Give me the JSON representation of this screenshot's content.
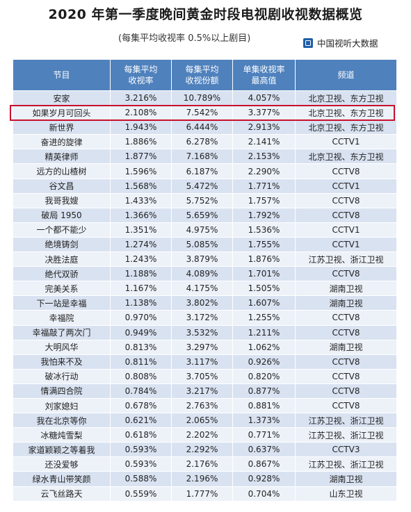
{
  "title": "2020 年第一季度晚间黄金时段电视剧收视数据概览",
  "subtitle": "(每集平均收视率 0.5%以上剧目)",
  "brand": {
    "icon": "tv-icon",
    "name": "中国视听大数据",
    "color": "#1f5fa8"
  },
  "table": {
    "header_color": "#4f81bd",
    "highlight_color": "#c8102e",
    "columns": [
      {
        "line1": "节目",
        "line2": ""
      },
      {
        "line1": "每集平均",
        "line2": "收视率"
      },
      {
        "line1": "每集平均",
        "line2": "收视份额"
      },
      {
        "line1": "单集收视率",
        "line2": "最高值"
      },
      {
        "line1": "频道",
        "line2": ""
      }
    ],
    "rows": [
      [
        "安家",
        "3.216%",
        "10.789%",
        "4.057%",
        "北京卫视、东方卫视"
      ],
      [
        "如果岁月可回头",
        "2.108%",
        "7.542%",
        "3.377%",
        "北京卫视、东方卫视"
      ],
      [
        "新世界",
        "1.943%",
        "6.444%",
        "2.913%",
        "北京卫视、东方卫视"
      ],
      [
        "奋进的旋律",
        "1.886%",
        "6.278%",
        "2.141%",
        "CCTV1"
      ],
      [
        "精英律师",
        "1.877%",
        "7.168%",
        "2.153%",
        "北京卫视、东方卫视"
      ],
      [
        "远方的山楂树",
        "1.596%",
        "6.187%",
        "2.290%",
        "CCTV8"
      ],
      [
        "谷文昌",
        "1.568%",
        "5.472%",
        "1.771%",
        "CCTV1"
      ],
      [
        "我哥我嫂",
        "1.433%",
        "5.752%",
        "1.757%",
        "CCTV8"
      ],
      [
        "破局 1950",
        "1.366%",
        "5.659%",
        "1.792%",
        "CCTV8"
      ],
      [
        "一个都不能少",
        "1.351%",
        "4.975%",
        "1.536%",
        "CCTV1"
      ],
      [
        "绝境铸剑",
        "1.274%",
        "5.085%",
        "1.755%",
        "CCTV1"
      ],
      [
        "决胜法庭",
        "1.243%",
        "3.879%",
        "1.876%",
        "江苏卫视、浙江卫视"
      ],
      [
        "绝代双骄",
        "1.188%",
        "4.089%",
        "1.701%",
        "CCTV8"
      ],
      [
        "完美关系",
        "1.167%",
        "4.175%",
        "1.505%",
        "湖南卫视"
      ],
      [
        "下一站是幸福",
        "1.138%",
        "3.802%",
        "1.607%",
        "湖南卫视"
      ],
      [
        "幸福院",
        "0.970%",
        "3.172%",
        "1.255%",
        "CCTV8"
      ],
      [
        "幸福敲了两次门",
        "0.949%",
        "3.532%",
        "1.211%",
        "CCTV8"
      ],
      [
        "大明风华",
        "0.813%",
        "3.297%",
        "1.062%",
        "湖南卫视"
      ],
      [
        "我怕来不及",
        "0.811%",
        "3.117%",
        "0.926%",
        "CCTV8"
      ],
      [
        "破冰行动",
        "0.808%",
        "3.705%",
        "0.820%",
        "CCTV8"
      ],
      [
        "情满四合院",
        "0.784%",
        "3.217%",
        "0.877%",
        "CCTV8"
      ],
      [
        "刘家媳妇",
        "0.678%",
        "2.763%",
        "0.881%",
        "CCTV8"
      ],
      [
        "我在北京等你",
        "0.621%",
        "2.065%",
        "1.373%",
        "江苏卫视、浙江卫视"
      ],
      [
        "冰糖炖雪梨",
        "0.618%",
        "2.202%",
        "0.771%",
        "江苏卫视、浙江卫视"
      ],
      [
        "家道颖颖之等着我",
        "0.593%",
        "2.292%",
        "0.637%",
        "CCTV3"
      ],
      [
        "还没爱够",
        "0.593%",
        "2.176%",
        "0.867%",
        "江苏卫视、浙江卫视"
      ],
      [
        "绿水青山带笑颜",
        "0.588%",
        "2.196%",
        "0.928%",
        "湖南卫视"
      ],
      [
        "云飞丝路天",
        "0.559%",
        "1.777%",
        "0.704%",
        "山东卫视"
      ]
    ]
  }
}
